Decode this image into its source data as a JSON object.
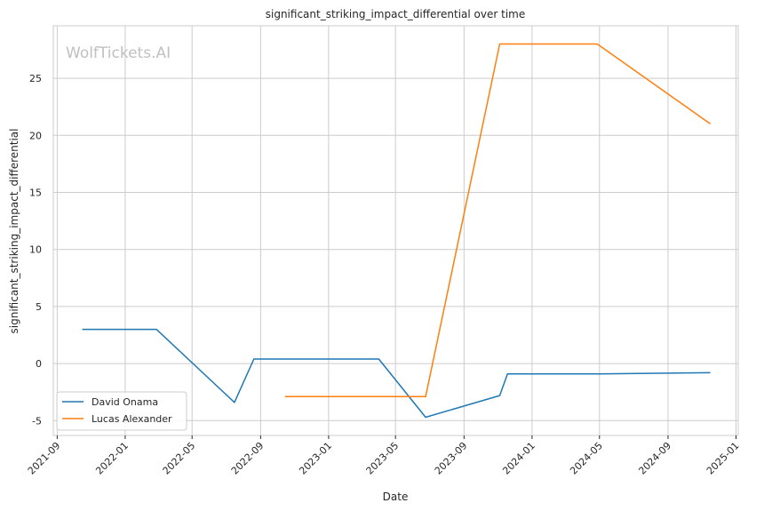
{
  "chart_data": {
    "type": "line",
    "title": "significant_striking_impact_differential over time",
    "xlabel": "Date",
    "ylabel": "significant_striking_impact_differential",
    "watermark": "WolfTickets.AI",
    "x_ticks": [
      "2021-09",
      "2022-01",
      "2022-05",
      "2022-09",
      "2023-01",
      "2023-05",
      "2023-09",
      "2024-01",
      "2024-05",
      "2024-09",
      "2025-01"
    ],
    "y_ticks": [
      -5,
      0,
      5,
      10,
      15,
      20,
      25
    ],
    "xlim": [
      "2021-08-25",
      "2025-01-05"
    ],
    "ylim": [
      -6.3,
      29.6
    ],
    "grid": true,
    "legend_position": "lower-left",
    "series": [
      {
        "name": "David Onama",
        "color": "#1f77b4",
        "points": [
          {
            "x": "2021-10-16",
            "y": 3.0
          },
          {
            "x": "2022-02-26",
            "y": 3.0
          },
          {
            "x": "2022-07-16",
            "y": -3.4
          },
          {
            "x": "2022-08-20",
            "y": 0.4
          },
          {
            "x": "2023-04-01",
            "y": 0.4
          },
          {
            "x": "2023-06-24",
            "y": -4.7
          },
          {
            "x": "2023-11-04",
            "y": -2.8
          },
          {
            "x": "2023-11-18",
            "y": -0.9
          },
          {
            "x": "2024-04-27",
            "y": -0.9
          },
          {
            "x": "2024-11-16",
            "y": -0.8
          }
        ]
      },
      {
        "name": "Lucas Alexander",
        "color": "#ff7f0e",
        "points": [
          {
            "x": "2022-10-15",
            "y": -2.9
          },
          {
            "x": "2023-06-24",
            "y": -2.9
          },
          {
            "x": "2023-11-04",
            "y": 28.0
          },
          {
            "x": "2024-04-27",
            "y": 28.0
          },
          {
            "x": "2024-11-16",
            "y": 21.0
          }
        ]
      }
    ]
  }
}
